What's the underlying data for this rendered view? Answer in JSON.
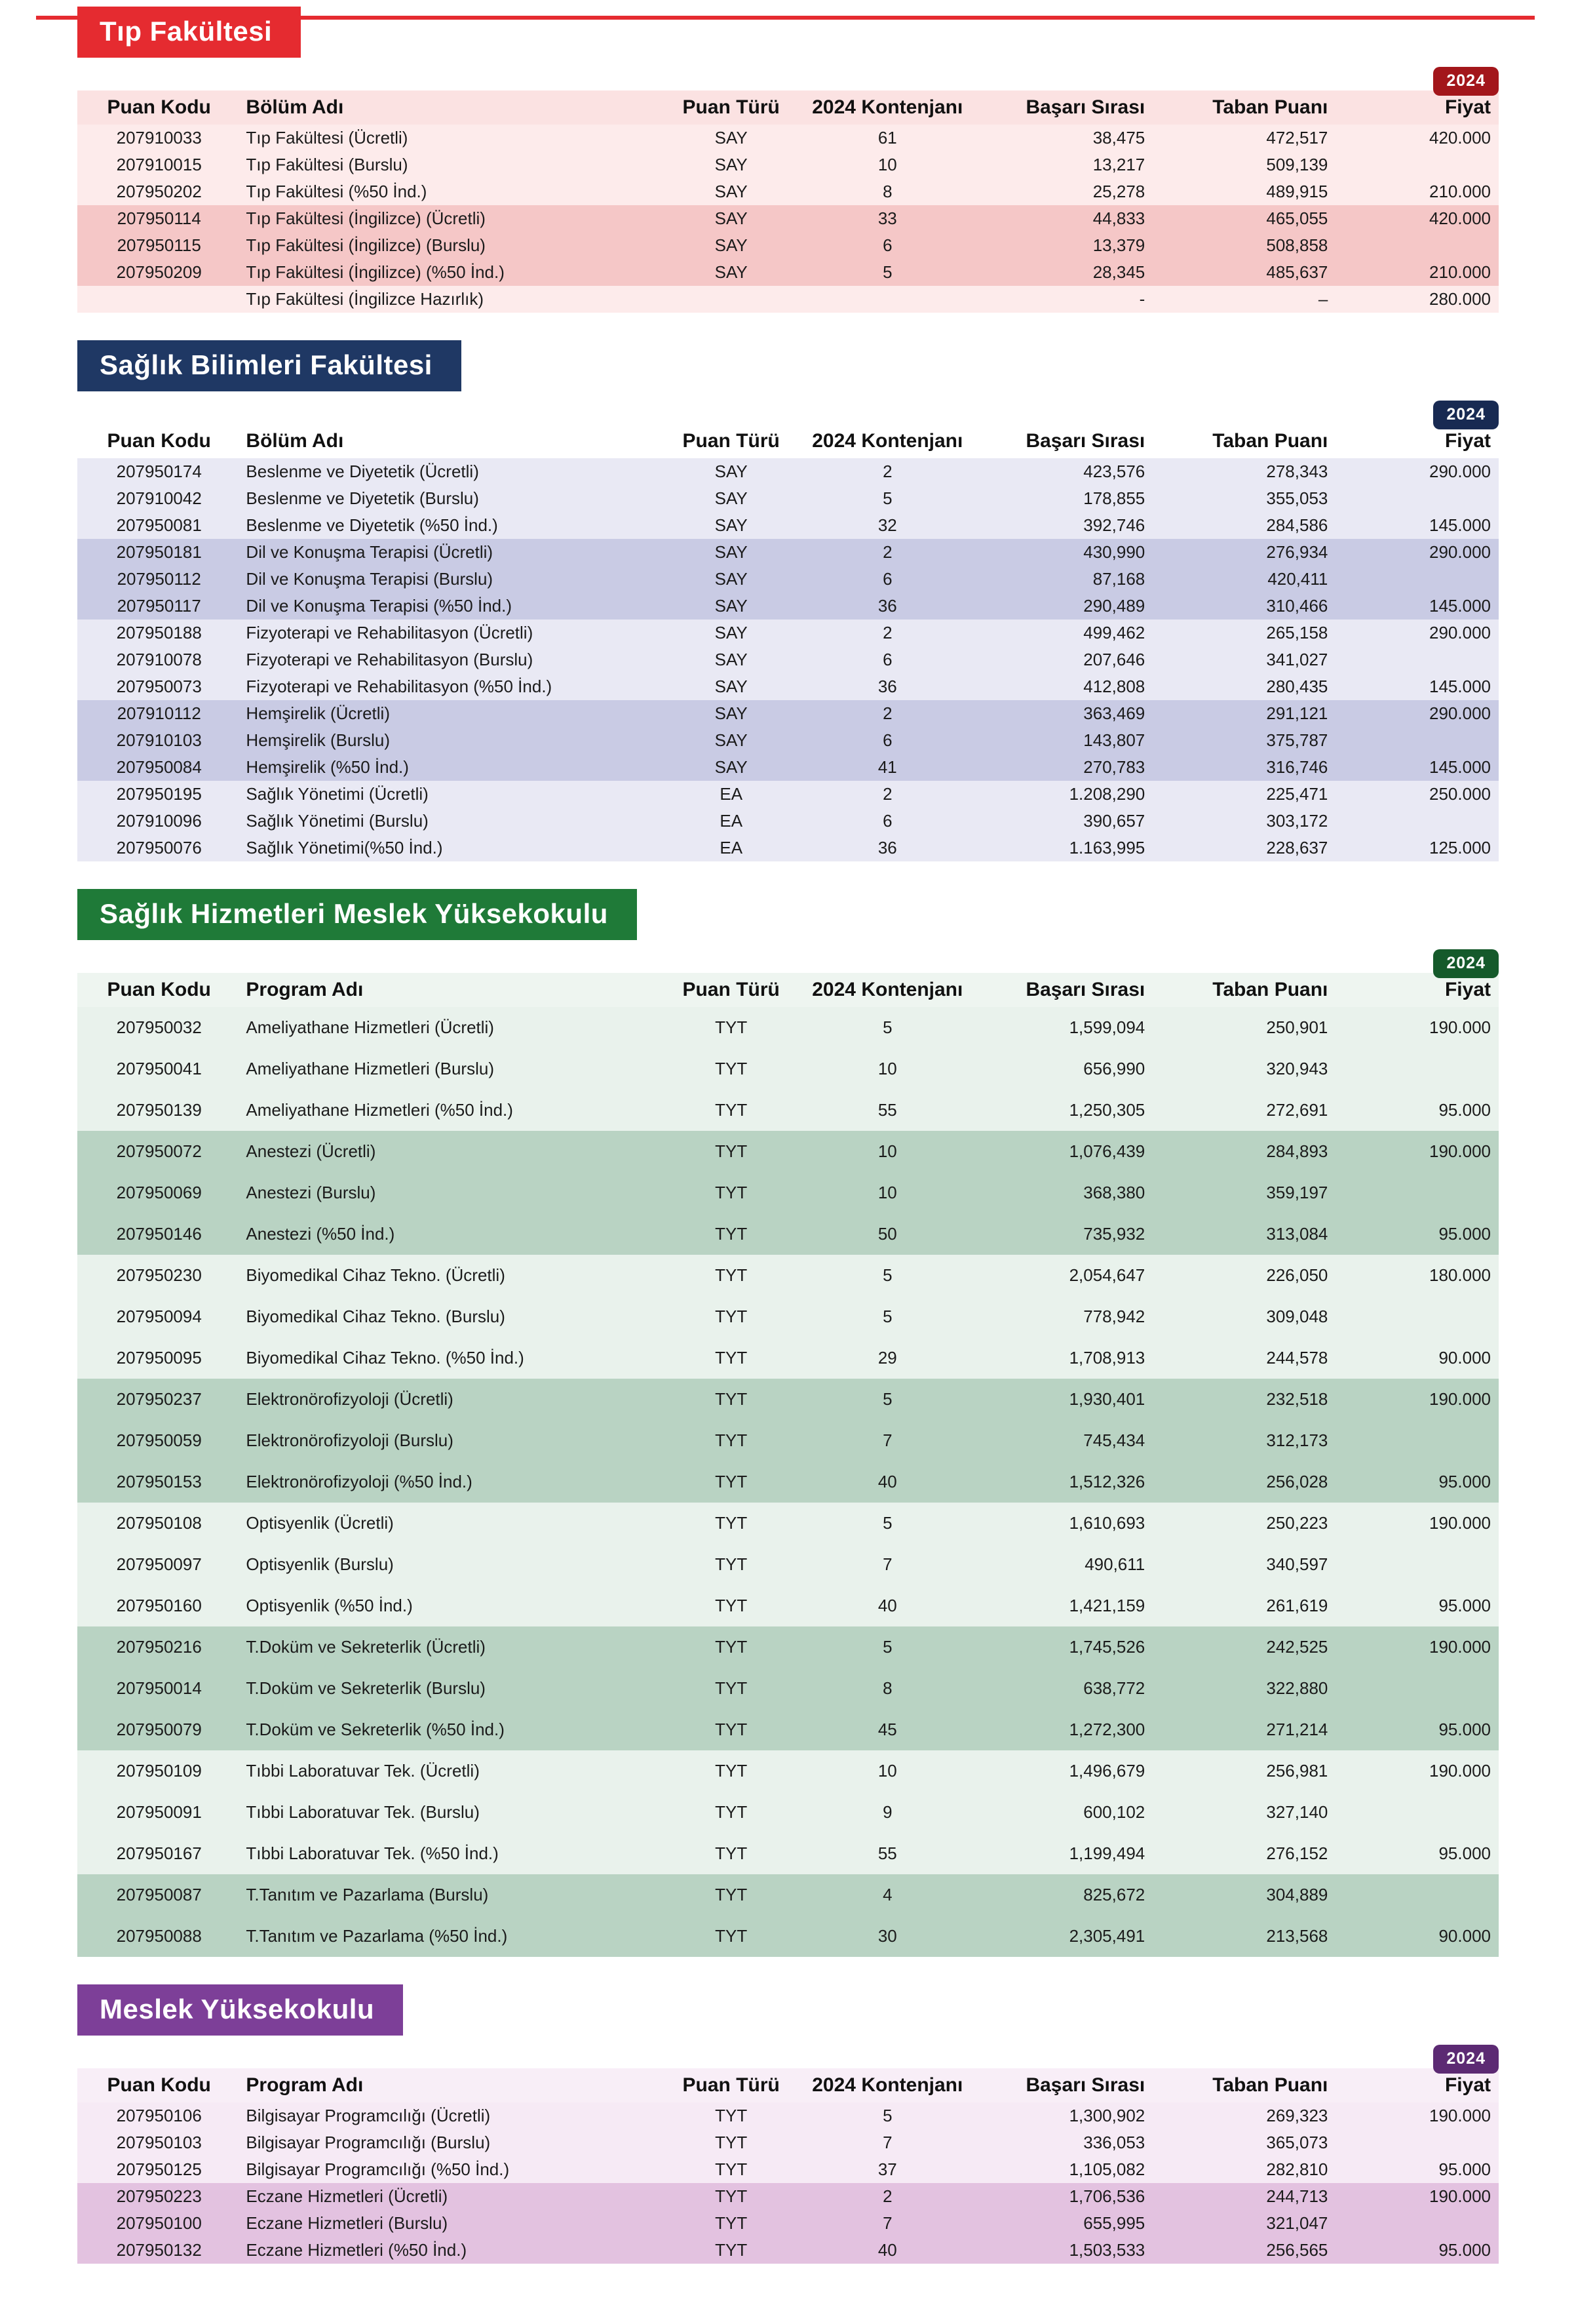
{
  "sections": [
    {
      "id": "tip-fakultesi",
      "title": "Tıp Fakültesi",
      "badge": "2024",
      "colors": {
        "accent": "#e52b30",
        "badge": "#a3161b",
        "row_light": "#fdebeb",
        "row_dark": "#f5c7c7",
        "header_row": "#fbe2e2"
      },
      "columns": [
        "Puan Kodu",
        "Bölüm Adı",
        "Puan Türü",
        "2024 Kontenjanı",
        "Başarı Sırası",
        "Taban Puanı",
        "Fiyat"
      ],
      "rows": [
        [
          "207910033",
          "Tıp Fakültesi (Ücretli)",
          "SAY",
          "61",
          "38,475",
          "472,517",
          "420.000"
        ],
        [
          "207910015",
          "Tıp Fakültesi (Burslu)",
          "SAY",
          "10",
          "13,217",
          "509,139",
          ""
        ],
        [
          "207950202",
          "Tıp Fakültesi (%50 İnd.)",
          "SAY",
          "8",
          "25,278",
          "489,915",
          "210.000"
        ],
        [
          "207950114",
          "Tıp Fakültesi (İngilizce) (Ücretli)",
          "SAY",
          "33",
          "44,833",
          "465,055",
          "420.000"
        ],
        [
          "207950115",
          "Tıp Fakültesi (İngilizce) (Burslu)",
          "SAY",
          "6",
          "13,379",
          "508,858",
          ""
        ],
        [
          "207950209",
          "Tıp Fakültesi (İngilizce) (%50 İnd.)",
          "SAY",
          "5",
          "28,345",
          "485,637",
          "210.000"
        ],
        [
          "",
          "Tıp Fakültesi (İngilizce Hazırlık)",
          "",
          "",
          "-",
          "–",
          "280.000"
        ]
      ]
    },
    {
      "id": "saglik-bilimleri-fakultesi",
      "title": "Sağlık Bilimleri Fakültesi",
      "badge": "2024",
      "colors": {
        "accent": "#1f3864",
        "badge": "#182a52",
        "row_light": "#e9e9f4",
        "row_dark": "#c9cbe4",
        "header_row": "#ffffff"
      },
      "columns": [
        "Puan Kodu",
        "Bölüm Adı",
        "Puan Türü",
        "2024 Kontenjanı",
        "Başarı Sırası",
        "Taban Puanı",
        "Fiyat"
      ],
      "rows": [
        [
          "207950174",
          "Beslenme ve Diyetetik (Ücretli)",
          "SAY",
          "2",
          "423,576",
          "278,343",
          "290.000"
        ],
        [
          "207910042",
          "Beslenme ve Diyetetik (Burslu)",
          "SAY",
          "5",
          "178,855",
          "355,053",
          ""
        ],
        [
          "207950081",
          "Beslenme ve Diyetetik (%50 İnd.)",
          "SAY",
          "32",
          "392,746",
          "284,586",
          "145.000"
        ],
        [
          "207950181",
          "Dil ve Konuşma Terapisi (Ücretli)",
          "SAY",
          "2",
          "430,990",
          "276,934",
          "290.000"
        ],
        [
          "207950112",
          "Dil ve Konuşma Terapisi (Burslu)",
          "SAY",
          "6",
          "87,168",
          "420,411",
          ""
        ],
        [
          "207950117",
          "Dil ve Konuşma Terapisi (%50 İnd.)",
          "SAY",
          "36",
          "290,489",
          "310,466",
          "145.000"
        ],
        [
          "207950188",
          "Fizyoterapi ve Rehabilitasyon (Ücretli)",
          "SAY",
          "2",
          "499,462",
          "265,158",
          "290.000"
        ],
        [
          "207910078",
          "Fizyoterapi ve Rehabilitasyon (Burslu)",
          "SAY",
          "6",
          "207,646",
          "341,027",
          ""
        ],
        [
          "207950073",
          "Fizyoterapi ve Rehabilitasyon (%50 İnd.)",
          "SAY",
          "36",
          "412,808",
          "280,435",
          "145.000"
        ],
        [
          "207910112",
          "Hemşirelik (Ücretli)",
          "SAY",
          "2",
          "363,469",
          "291,121",
          "290.000"
        ],
        [
          "207910103",
          "Hemşirelik (Burslu)",
          "SAY",
          "6",
          "143,807",
          "375,787",
          ""
        ],
        [
          "207950084",
          "Hemşirelik (%50 İnd.)",
          "SAY",
          "41",
          "270,783",
          "316,746",
          "145.000"
        ],
        [
          "207950195",
          "Sağlık Yönetimi (Ücretli)",
          "EA",
          "2",
          "1.208,290",
          "225,471",
          "250.000"
        ],
        [
          "207910096",
          "Sağlık Yönetimi (Burslu)",
          "EA",
          "6",
          "390,657",
          "303,172",
          ""
        ],
        [
          "207950076",
          "Sağlık Yönetimi(%50 İnd.)",
          "EA",
          "36",
          "1.163,995",
          "228,637",
          "125.000"
        ]
      ]
    },
    {
      "id": "saglik-hizmetleri-meslek-yuksekokulu",
      "title": "Sağlık Hizmetleri Meslek Yüksekokulu",
      "badge": "2024",
      "colors": {
        "accent": "#1f7a38",
        "badge": "#155a2b",
        "row_light": "#e9f2ec",
        "row_dark": "#b9d3c3",
        "header_row": "#eef5f0"
      },
      "columns": [
        "Puan Kodu",
        "Program Adı",
        "Puan Türü",
        "2024 Kontenjanı",
        "Başarı Sırası",
        "Taban Puanı",
        "Fiyat"
      ],
      "rows": [
        [
          "207950032",
          "Ameliyathane Hizmetleri (Ücretli)",
          "TYT",
          "5",
          "1,599,094",
          "250,901",
          "190.000"
        ],
        [
          "207950041",
          "Ameliyathane Hizmetleri (Burslu)",
          "TYT",
          "10",
          "656,990",
          "320,943",
          ""
        ],
        [
          "207950139",
          "Ameliyathane Hizmetleri (%50 İnd.)",
          "TYT",
          "55",
          "1,250,305",
          "272,691",
          "95.000"
        ],
        [
          "207950072",
          "Anestezi (Ücretli)",
          "TYT",
          "10",
          "1,076,439",
          "284,893",
          "190.000"
        ],
        [
          "207950069",
          "Anestezi (Burslu)",
          "TYT",
          "10",
          "368,380",
          "359,197",
          ""
        ],
        [
          "207950146",
          "Anestezi (%50 İnd.)",
          "TYT",
          "50",
          "735,932",
          "313,084",
          "95.000"
        ],
        [
          "207950230",
          "Biyomedikal Cihaz Tekno. (Ücretli)",
          "TYT",
          "5",
          "2,054,647",
          "226,050",
          "180.000"
        ],
        [
          "207950094",
          "Biyomedikal Cihaz Tekno. (Burslu)",
          "TYT",
          "5",
          "778,942",
          "309,048",
          ""
        ],
        [
          "207950095",
          "Biyomedikal Cihaz Tekno. (%50 İnd.)",
          "TYT",
          "29",
          "1,708,913",
          "244,578",
          "90.000"
        ],
        [
          "207950237",
          "Elektronörofizyoloji (Ücretli)",
          "TYT",
          "5",
          "1,930,401",
          "232,518",
          "190.000"
        ],
        [
          "207950059",
          "Elektronörofizyoloji (Burslu)",
          "TYT",
          "7",
          "745,434",
          "312,173",
          ""
        ],
        [
          "207950153",
          "Elektronörofizyoloji (%50 İnd.)",
          "TYT",
          "40",
          "1,512,326",
          "256,028",
          "95.000"
        ],
        [
          "207950108",
          "Optisyenlik (Ücretli)",
          "TYT",
          "5",
          "1,610,693",
          "250,223",
          "190.000"
        ],
        [
          "207950097",
          "Optisyenlik (Burslu)",
          "TYT",
          "7",
          "490,611",
          "340,597",
          ""
        ],
        [
          "207950160",
          "Optisyenlik (%50 İnd.)",
          "TYT",
          "40",
          "1,421,159",
          "261,619",
          "95.000"
        ],
        [
          "207950216",
          "T.Doküm ve Sekreterlik (Ücretli)",
          "TYT",
          "5",
          "1,745,526",
          "242,525",
          "190.000"
        ],
        [
          "207950014",
          "T.Doküm ve Sekreterlik (Burslu)",
          "TYT",
          "8",
          "638,772",
          "322,880",
          ""
        ],
        [
          "207950079",
          "T.Doküm ve Sekreterlik (%50 İnd.)",
          "TYT",
          "45",
          "1,272,300",
          "271,214",
          "95.000"
        ],
        [
          "207950109",
          "Tıbbi Laboratuvar Tek. (Ücretli)",
          "TYT",
          "10",
          "1,496,679",
          "256,981",
          "190.000"
        ],
        [
          "207950091",
          "Tıbbi Laboratuvar Tek. (Burslu)",
          "TYT",
          "9",
          "600,102",
          "327,140",
          ""
        ],
        [
          "207950167",
          "Tıbbi Laboratuvar Tek. (%50 İnd.)",
          "TYT",
          "55",
          "1,199,494",
          "276,152",
          "95.000"
        ],
        [
          "207950087",
          "T.Tanıtım ve Pazarlama (Burslu)",
          "TYT",
          "4",
          "825,672",
          "304,889",
          ""
        ],
        [
          "207950088",
          "T.Tanıtım ve Pazarlama (%50 İnd.)",
          "TYT",
          "30",
          "2,305,491",
          "213,568",
          "90.000"
        ]
      ]
    },
    {
      "id": "meslek-yuksekokulu",
      "title": "Meslek Yüksekokulu",
      "badge": "2024",
      "colors": {
        "accent": "#7d3f98",
        "badge": "#5c2a73",
        "row_light": "#f6eaf5",
        "row_dark": "#e3c2e0",
        "header_row": "#f8eef7"
      },
      "columns": [
        "Puan Kodu",
        "Program Adı",
        "Puan Türü",
        "2024 Kontenjanı",
        "Başarı Sırası",
        "Taban Puanı",
        "Fiyat"
      ],
      "rows": [
        [
          "207950106",
          "Bilgisayar Programcılığı (Ücretli)",
          "TYT",
          "5",
          "1,300,902",
          "269,323",
          "190.000"
        ],
        [
          "207950103",
          "Bilgisayar Programcılığı (Burslu)",
          "TYT",
          "7",
          "336,053",
          "365,073",
          ""
        ],
        [
          "207950125",
          "Bilgisayar Programcılığı (%50 İnd.)",
          "TYT",
          "37",
          "1,105,082",
          "282,810",
          "95.000"
        ],
        [
          "207950223",
          "Eczane Hizmetleri (Ücretli)",
          "TYT",
          "2",
          "1,706,536",
          "244,713",
          "190.000"
        ],
        [
          "207950100",
          "Eczane Hizmetleri (Burslu)",
          "TYT",
          "7",
          "655,995",
          "321,047",
          ""
        ],
        [
          "207950132",
          "Eczane Hizmetleri (%50 İnd.)",
          "TYT",
          "40",
          "1,503,533",
          "256,565",
          "95.000"
        ]
      ]
    }
  ]
}
